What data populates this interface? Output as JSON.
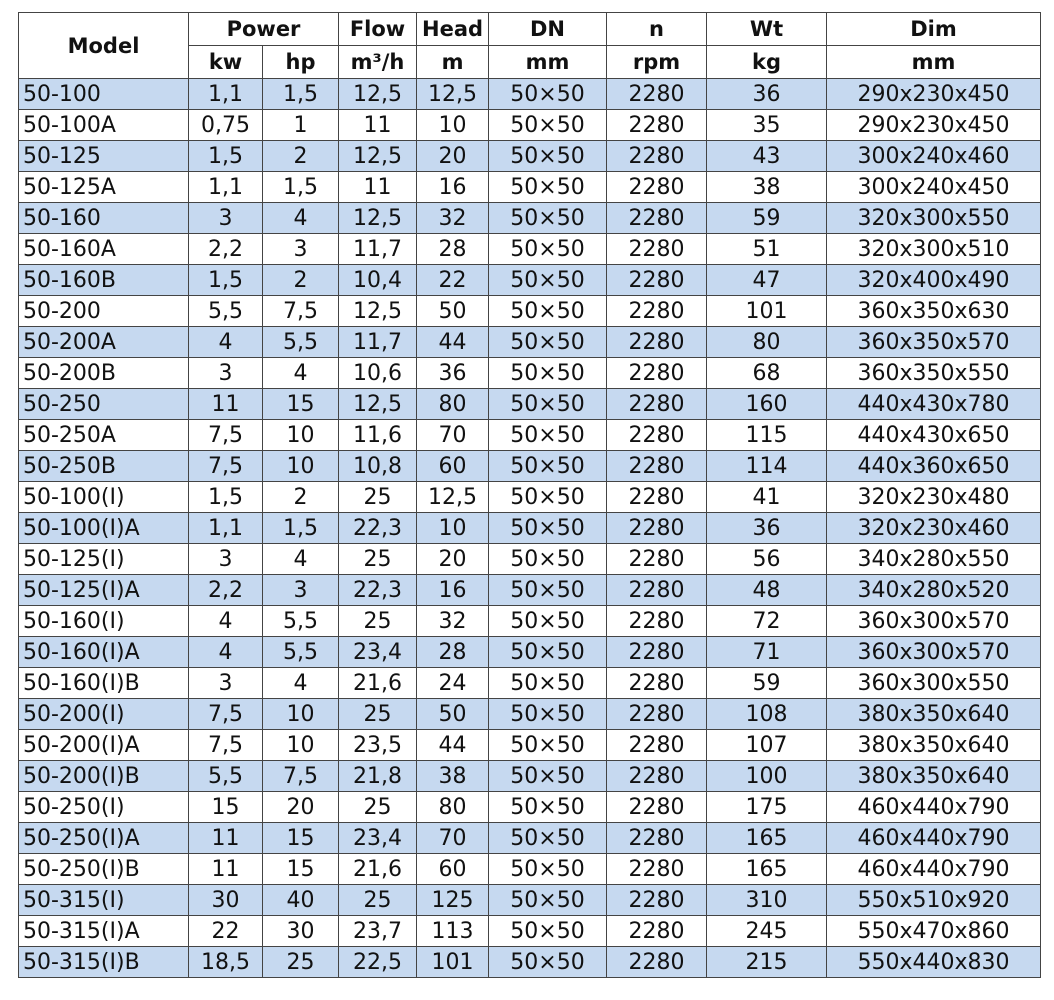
{
  "table": {
    "header": {
      "top": [
        "Model",
        "Power",
        "Flow",
        "Head",
        "DN",
        "n",
        "Wt",
        "Dim"
      ],
      "units": [
        "kw",
        "hp",
        "m³/h",
        "m",
        "mm",
        "rpm",
        "kg",
        "mm"
      ]
    },
    "rows": [
      [
        "50-100",
        "1,1",
        "1,5",
        "12,5",
        "12,5",
        "50×50",
        "2280",
        "36",
        "290x230x450"
      ],
      [
        "50-100A",
        "0,75",
        "1",
        "11",
        "10",
        "50×50",
        "2280",
        "35",
        "290x230x450"
      ],
      [
        "50-125",
        "1,5",
        "2",
        "12,5",
        "20",
        "50×50",
        "2280",
        "43",
        "300x240x460"
      ],
      [
        "50-125A",
        "1,1",
        "1,5",
        "11",
        "16",
        "50×50",
        "2280",
        "38",
        "300x240x450"
      ],
      [
        "50-160",
        "3",
        "4",
        "12,5",
        "32",
        "50×50",
        "2280",
        "59",
        "320x300x550"
      ],
      [
        "50-160A",
        "2,2",
        "3",
        "11,7",
        "28",
        "50×50",
        "2280",
        "51",
        "320x300x510"
      ],
      [
        "50-160B",
        "1,5",
        "2",
        "10,4",
        "22",
        "50×50",
        "2280",
        "47",
        "320x400x490"
      ],
      [
        "50-200",
        "5,5",
        "7,5",
        "12,5",
        "50",
        "50×50",
        "2280",
        "101",
        "360x350x630"
      ],
      [
        "50-200A",
        "4",
        "5,5",
        "11,7",
        "44",
        "50×50",
        "2280",
        "80",
        "360x350x570"
      ],
      [
        "50-200B",
        "3",
        "4",
        "10,6",
        "36",
        "50×50",
        "2280",
        "68",
        "360x350x550"
      ],
      [
        "50-250",
        "11",
        "15",
        "12,5",
        "80",
        "50×50",
        "2280",
        "160",
        "440x430x780"
      ],
      [
        "50-250A",
        "7,5",
        "10",
        "11,6",
        "70",
        "50×50",
        "2280",
        "115",
        "440x430x650"
      ],
      [
        "50-250B",
        "7,5",
        "10",
        "10,8",
        "60",
        "50×50",
        "2280",
        "114",
        "440x360x650"
      ],
      [
        "50-100(I)",
        "1,5",
        "2",
        "25",
        "12,5",
        "50×50",
        "2280",
        "41",
        "320x230x480"
      ],
      [
        "50-100(I)A",
        "1,1",
        "1,5",
        "22,3",
        "10",
        "50×50",
        "2280",
        "36",
        "320x230x460"
      ],
      [
        "50-125(I)",
        "3",
        "4",
        "25",
        "20",
        "50×50",
        "2280",
        "56",
        "340x280x550"
      ],
      [
        "50-125(I)A",
        "2,2",
        "3",
        "22,3",
        "16",
        "50×50",
        "2280",
        "48",
        "340x280x520"
      ],
      [
        "50-160(I)",
        "4",
        "5,5",
        "25",
        "32",
        "50×50",
        "2280",
        "72",
        "360x300x570"
      ],
      [
        "50-160(I)A",
        "4",
        "5,5",
        "23,4",
        "28",
        "50×50",
        "2280",
        "71",
        "360x300x570"
      ],
      [
        "50-160(I)B",
        "3",
        "4",
        "21,6",
        "24",
        "50×50",
        "2280",
        "59",
        "360x300x550"
      ],
      [
        "50-200(I)",
        "7,5",
        "10",
        "25",
        "50",
        "50×50",
        "2280",
        "108",
        "380x350x640"
      ],
      [
        "50-200(I)A",
        "7,5",
        "10",
        "23,5",
        "44",
        "50×50",
        "2280",
        "107",
        "380x350x640"
      ],
      [
        "50-200(I)B",
        "5,5",
        "7,5",
        "21,8",
        "38",
        "50×50",
        "2280",
        "100",
        "380x350x640"
      ],
      [
        "50-250(I)",
        "15",
        "20",
        "25",
        "80",
        "50×50",
        "2280",
        "175",
        "460x440x790"
      ],
      [
        "50-250(I)A",
        "11",
        "15",
        "23,4",
        "70",
        "50×50",
        "2280",
        "165",
        "460x440x790"
      ],
      [
        "50-250(I)B",
        "11",
        "15",
        "21,6",
        "60",
        "50×50",
        "2280",
        "165",
        "460x440x790"
      ],
      [
        "50-315(I)",
        "30",
        "40",
        "25",
        "125",
        "50×50",
        "2280",
        "310",
        "550x510x920"
      ],
      [
        "50-315(I)A",
        "22",
        "30",
        "23,7",
        "113",
        "50×50",
        "2280",
        "245",
        "550x470x860"
      ],
      [
        "50-315(I)B",
        "18,5",
        "25",
        "22,5",
        "101",
        "50×50",
        "2280",
        "215",
        "550x440x830"
      ]
    ]
  }
}
